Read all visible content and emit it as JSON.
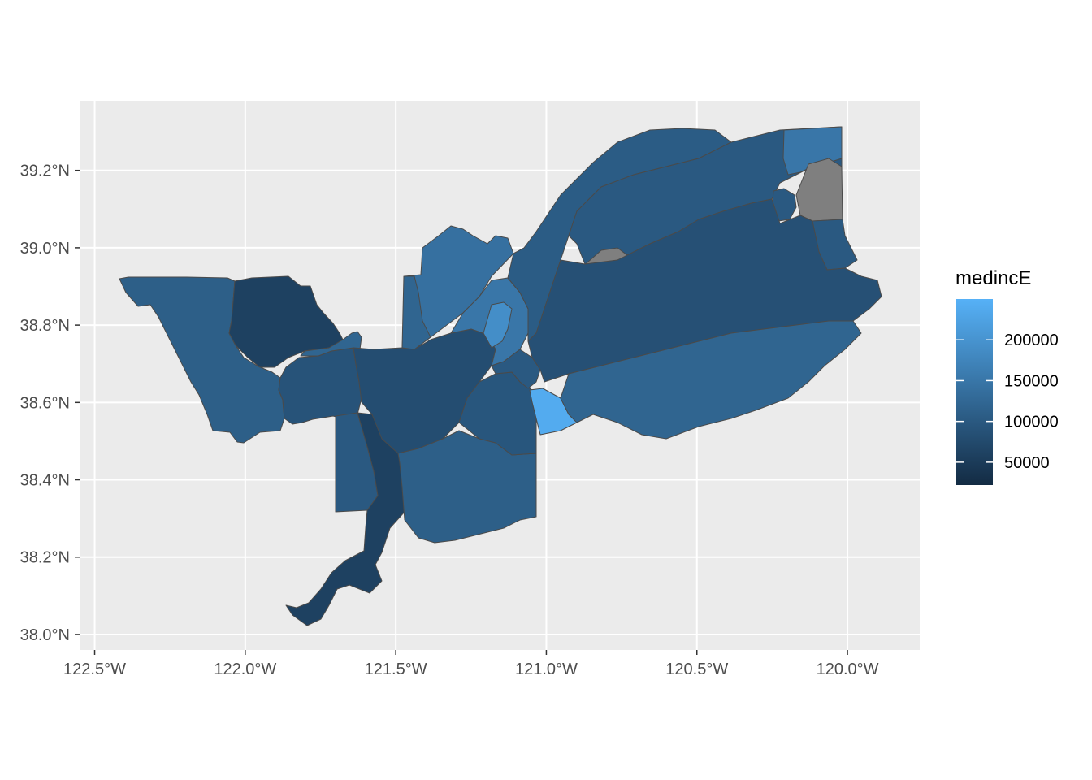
{
  "figure": {
    "type": "choropleth map",
    "region": "census tracts (median household income)",
    "panel_background": "#ebebeb",
    "grid_color": "#ffffff",
    "missing_color": "#7f7f7f",
    "border_color": "#4a4a4a"
  },
  "axes": {
    "x_ticks": [
      "122.5°W",
      "122.0°W",
      "121.5°W",
      "121.0°W",
      "120.5°W",
      "120.0°W"
    ],
    "y_ticks": [
      "39.2°N",
      "39.0°N",
      "38.8°N",
      "38.6°N",
      "38.4°N",
      "38.2°N",
      "38.0°N"
    ],
    "x_tick_values": [
      -122.5,
      -122.0,
      -121.5,
      -121.0,
      -120.5,
      -120.0
    ],
    "y_tick_values": [
      39.2,
      39.0,
      38.8,
      38.6,
      38.4,
      38.2,
      38.0
    ],
    "xlim": [
      -122.55,
      -119.76
    ],
    "ylim": [
      37.96,
      39.38
    ]
  },
  "legend": {
    "title": "medincE",
    "labels": [
      "200000",
      "150000",
      "100000",
      "50000"
    ],
    "label_values": [
      200000,
      150000,
      100000,
      50000
    ],
    "range": [
      22000,
      250000
    ],
    "low_color": "#132b43",
    "high_color": "#56b1f7"
  },
  "chart_data": {
    "type": "choropleth",
    "variable": "medincE",
    "color_scale": {
      "low": "#132b43",
      "high": "#56b1f7",
      "min": 22000,
      "max": 250000,
      "na_color": "#7f7f7f"
    },
    "regions": [
      {
        "id": "yolo-west",
        "value": 110000
      },
      {
        "id": "yolo-north",
        "value": 60000
      },
      {
        "id": "davis",
        "value": 90000
      },
      {
        "id": "woodland",
        "value": 120000
      },
      {
        "id": "north-natomas",
        "value": 140000
      },
      {
        "id": "delta-south",
        "value": 60000
      },
      {
        "id": "sacramento-core",
        "value": 80000
      },
      {
        "id": "elk-grove",
        "value": 110000
      },
      {
        "id": "rancho-cordova",
        "value": 95000
      },
      {
        "id": "roseville",
        "value": 150000
      },
      {
        "id": "lincoln",
        "value": 120000
      },
      {
        "id": "granite-bay",
        "value": 190000
      },
      {
        "id": "el-dorado-hills",
        "value": 240000
      },
      {
        "id": "placer-foothills",
        "value": 105000
      },
      {
        "id": "placer-north",
        "value": 100000
      },
      {
        "id": "el-dorado-central",
        "value": 85000
      },
      {
        "id": "el-dorado-south",
        "value": 120000
      },
      {
        "id": "tahoe-west",
        "value": 150000
      },
      {
        "id": "tahoe-north",
        "value": null
      },
      {
        "id": "desolation",
        "value": null
      }
    ]
  }
}
